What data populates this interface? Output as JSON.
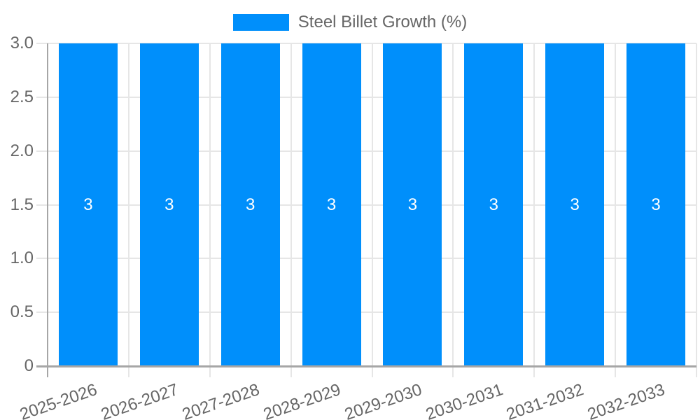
{
  "chart_data": {
    "type": "bar",
    "title": "Steel Billet Growth (%)",
    "legend_position": "top",
    "legend_entries": [
      "Steel Billet Growth (%)"
    ],
    "categories": [
      "2025-2026",
      "2026-2027",
      "2027-2028",
      "2028-2029",
      "2029-2030",
      "2030-2031",
      "2031-2032",
      "2032-2033"
    ],
    "series": [
      {
        "name": "Steel Billet Growth (%)",
        "values": [
          3,
          3,
          3,
          3,
          3,
          3,
          3,
          3
        ],
        "bar_labels": [
          "3",
          "3",
          "3",
          "3",
          "3",
          "3",
          "3",
          "3"
        ]
      }
    ],
    "xlabel": "",
    "ylabel": "",
    "ylim": [
      0,
      3
    ],
    "ytick_values": [
      0,
      0.5,
      1,
      1.5,
      2,
      2.5,
      3
    ],
    "ytick_labels": [
      "0",
      "0.5",
      "1.0",
      "1.5",
      "2.0",
      "2.5",
      "3.0"
    ],
    "grid": "on",
    "x_tick_label_rotation_deg": -19,
    "colors": {
      "bar": "#008FFB",
      "bar_label_text": "#ffffff",
      "grid_line": "#e6e6e6",
      "axis_line": "#a6a6a6",
      "tick_text": "#666666",
      "legend_text": "#666666",
      "background": "#ffffff"
    }
  }
}
